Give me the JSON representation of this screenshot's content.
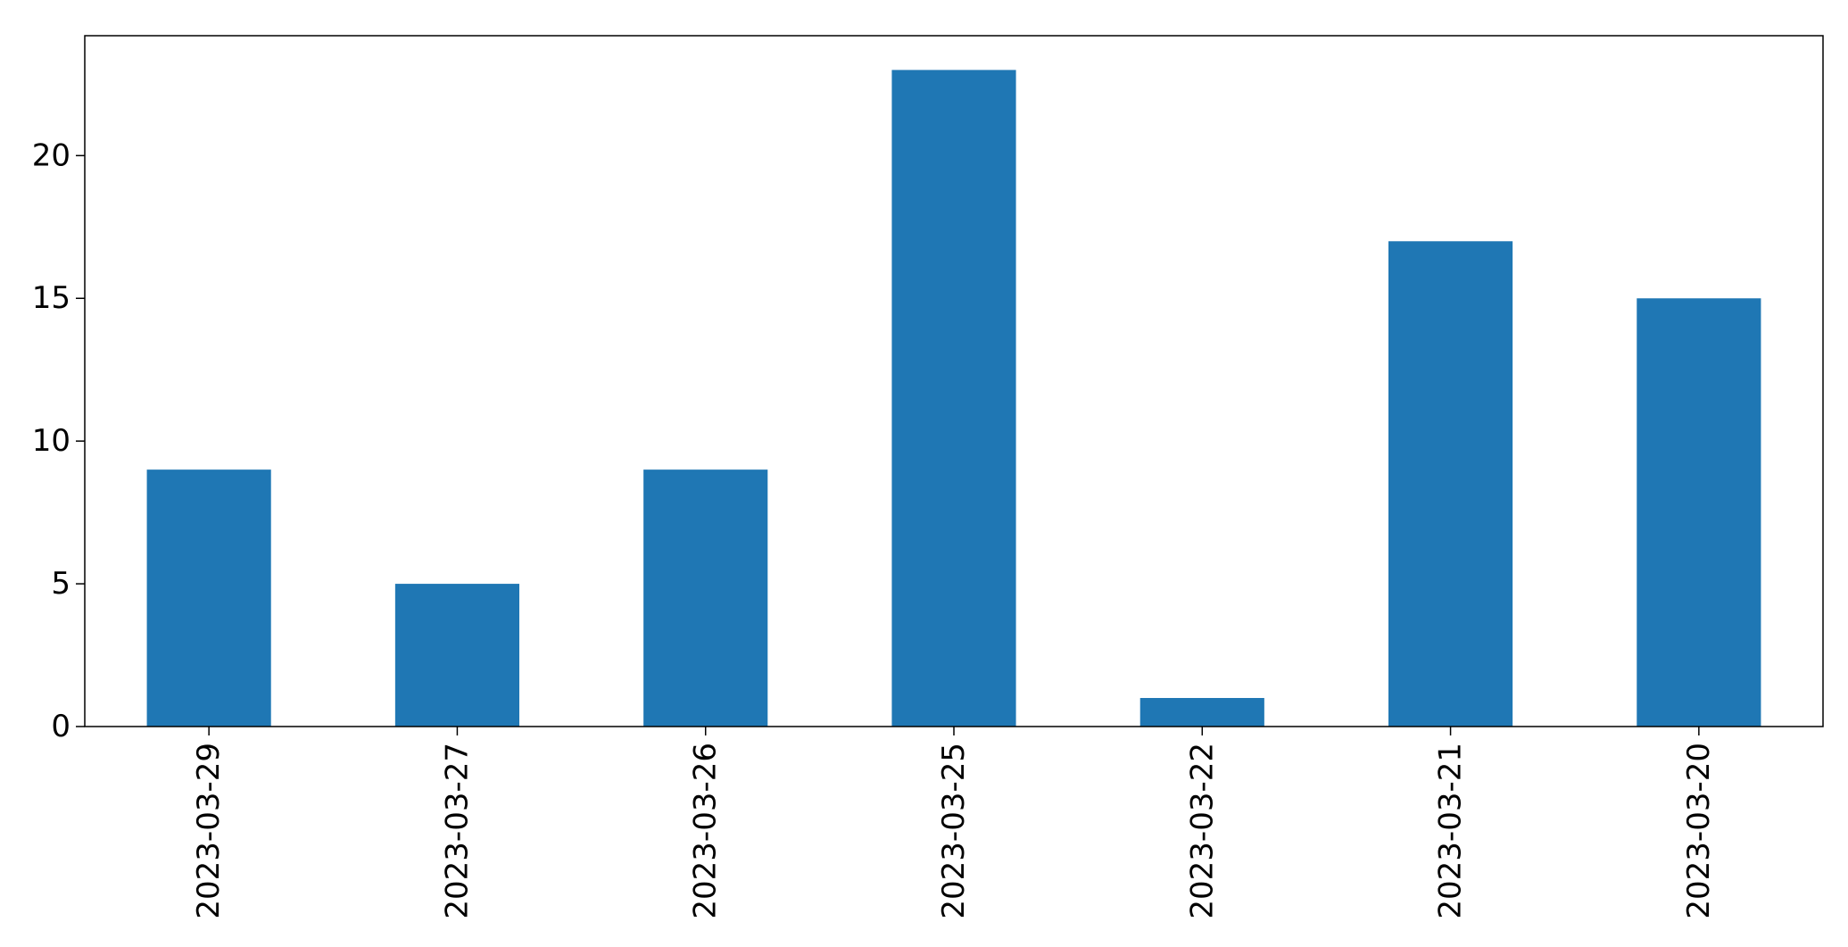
{
  "chart_data": {
    "type": "bar",
    "categories": [
      "2023-03-29",
      "2023-03-27",
      "2023-03-26",
      "2023-03-25",
      "2023-03-22",
      "2023-03-21",
      "2023-03-20"
    ],
    "values": [
      9,
      5,
      9,
      23,
      1,
      17,
      15
    ],
    "title": "",
    "xlabel": "",
    "ylabel": "",
    "ylim": [
      0,
      24.2
    ],
    "yticks": [
      0,
      5,
      10,
      15,
      20
    ],
    "grid": false,
    "legend": "none",
    "bar_color": "#1f77b4"
  }
}
